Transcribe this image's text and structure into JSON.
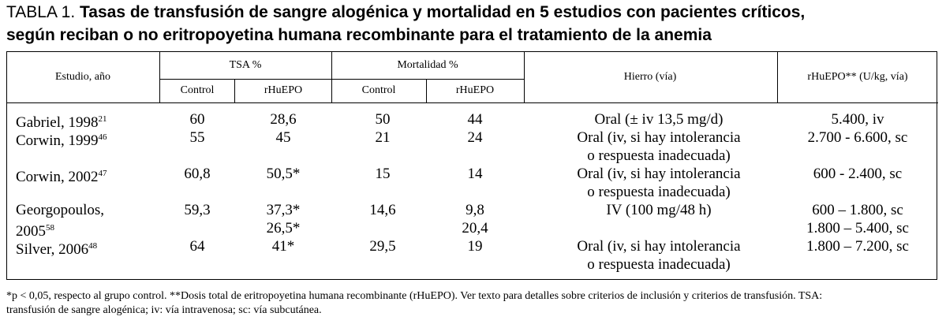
{
  "title": {
    "label": "TABLA 1.",
    "lines": [
      "Tasas de transfusión de sangre alogénica y mortalidad en 5 estudios con pacientes críticos,",
      "según reciban o no eritropoyetina humana recombinante para el tratamiento de la anemia"
    ]
  },
  "table": {
    "header": {
      "study": "Estudio, año",
      "tsa": "TSA %",
      "tsa_control": "Control",
      "tsa_rhuepo": "rHuEPO",
      "mortality": "Mortalidad %",
      "mortality_control": "Control",
      "mortality_rhuepo": "rHuEPO",
      "iron": "Hierro (vía)",
      "dose": "rHuEPO** (U/kg, vía)"
    },
    "rows": [
      {
        "study": [
          "Gabriel, 1998"
        ],
        "ref": "21",
        "tsa_control": [
          "60"
        ],
        "tsa_rhuepo": [
          "28,6"
        ],
        "mortality_control": [
          "50"
        ],
        "mortality_rhuepo": [
          "44"
        ],
        "iron": [
          "Oral (± iv 13,5 mg/d)"
        ],
        "dose": [
          "5.400, iv"
        ]
      },
      {
        "study": [
          "Corwin, 1999"
        ],
        "ref": "46",
        "tsa_control": [
          "55"
        ],
        "tsa_rhuepo": [
          "45"
        ],
        "mortality_control": [
          "21"
        ],
        "mortality_rhuepo": [
          "24"
        ],
        "iron": [
          "Oral (iv, si hay intolerancia",
          "o respuesta inadecuada)"
        ],
        "dose": [
          "2.700 - 6.600, sc"
        ]
      },
      {
        "study": [
          "Corwin, 2002"
        ],
        "ref": "47",
        "tsa_control": [
          "60,8"
        ],
        "tsa_rhuepo": [
          "50,5*"
        ],
        "mortality_control": [
          "15"
        ],
        "mortality_rhuepo": [
          "14"
        ],
        "iron": [
          "Oral (iv, si hay intolerancia",
          "o respuesta inadecuada)"
        ],
        "dose": [
          "600 - 2.400, sc"
        ]
      },
      {
        "study": [
          "Georgopoulos,",
          "2005"
        ],
        "ref": "58",
        "tsa_control": [
          "59,3"
        ],
        "tsa_rhuepo": [
          "37,3*",
          "26,5*"
        ],
        "mortality_control": [
          "14,6"
        ],
        "mortality_rhuepo": [
          "9,8",
          "20,4"
        ],
        "iron": [
          "IV (100 mg/48 h)"
        ],
        "dose": [
          "600 – 1.800, sc",
          "1.800 – 5.400, sc"
        ]
      },
      {
        "study": [
          "Silver, 2006"
        ],
        "ref": "48",
        "tsa_control": [
          "64"
        ],
        "tsa_rhuepo": [
          "41*"
        ],
        "mortality_control": [
          "29,5"
        ],
        "mortality_rhuepo": [
          "19"
        ],
        "iron": [
          "Oral (iv, si hay intolerancia",
          "o respuesta inadecuada)"
        ],
        "dose": [
          "1.800 – 7.200, sc"
        ]
      }
    ]
  },
  "footnote": {
    "lines": [
      "*p < 0,05, respecto al grupo control. **Dosis total de eritropoyetina humana recombinante (rHuEPO). Ver texto para detalles sobre criterios de inclusión y criterios de transfusión. TSA:",
      "transfusión de sangre alogénica; iv: vía intravenosa; sc: vía subcutánea."
    ]
  }
}
